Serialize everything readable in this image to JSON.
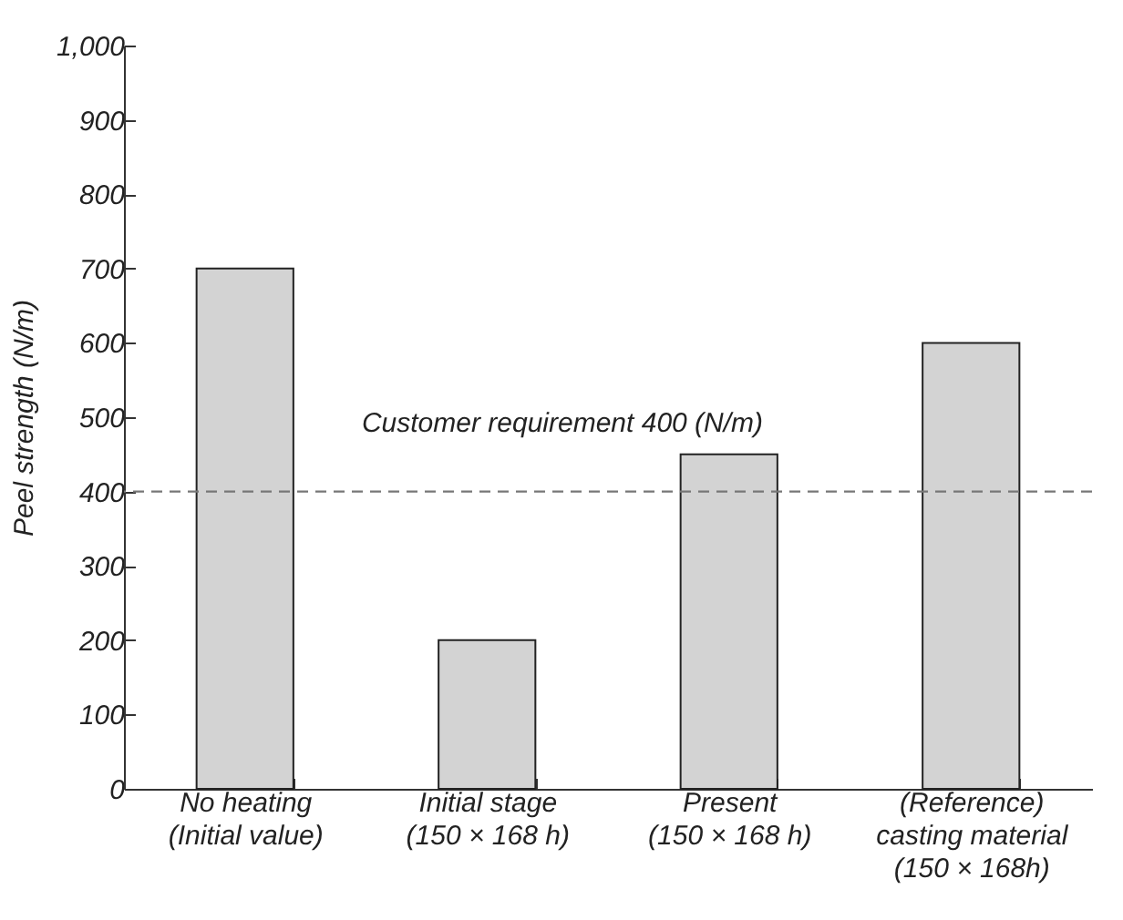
{
  "chart_data": {
    "type": "bar",
    "ylabel": "Peel strength (N/m)",
    "categories": [
      "No heating\n(Initial value)",
      "Initial stage\n(150 × 168 h)",
      "Present\n(150 × 168 h)",
      "(Reference)\ncasting material\n(150 × 168h)"
    ],
    "values": [
      700,
      200,
      450,
      600
    ],
    "color": "#d3d3d3",
    "ylim": [
      0,
      1000
    ],
    "yticks": [
      0,
      100,
      200,
      300,
      400,
      500,
      600,
      700,
      800,
      900,
      {
        "value": 1000,
        "label": "1,000"
      }
    ],
    "ref_lines": [
      {
        "axis": "y",
        "value": 400,
        "label": "Customer requirement 400 (N/m)",
        "color": "#777777",
        "line_style": "dashed"
      }
    ],
    "grid": false
  }
}
